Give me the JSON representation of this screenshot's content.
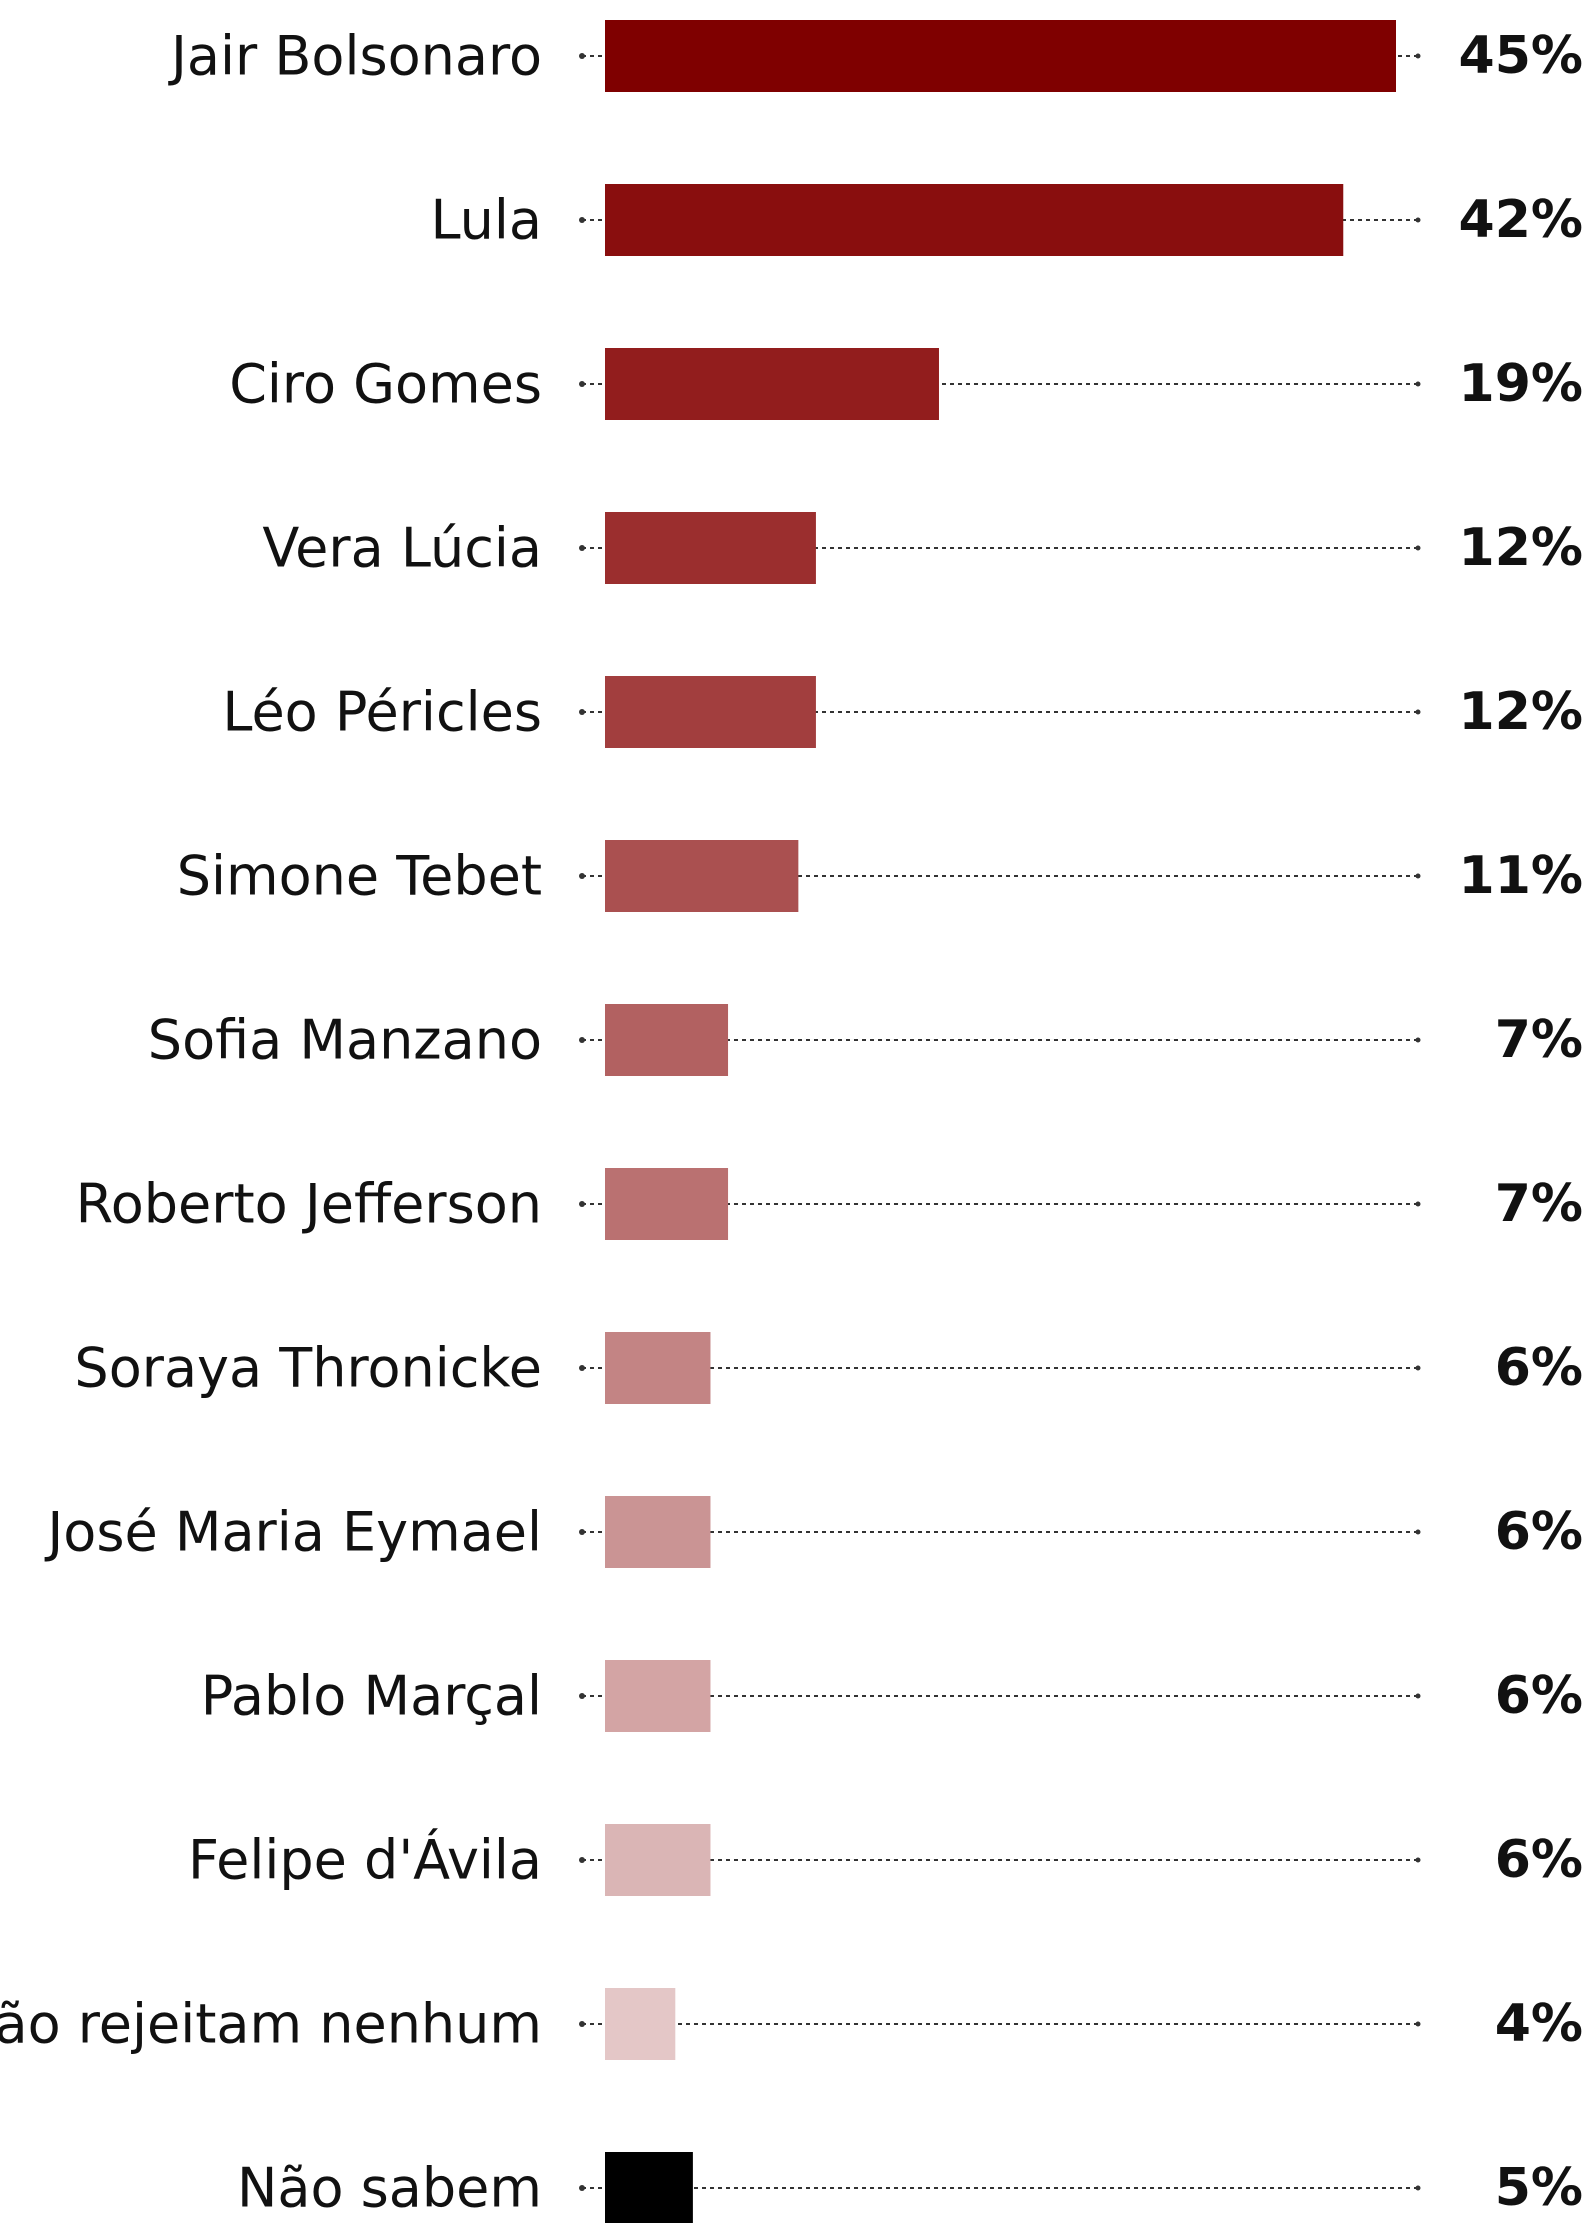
{
  "chart_data": {
    "type": "bar",
    "orientation": "horizontal",
    "categories": [
      "Jair Bolsonaro",
      "Lula",
      "Ciro Gomes",
      "Vera Lúcia",
      "Léo Péricles",
      "Simone Tebet",
      "Sofia Manzano",
      "Roberto Jefferson",
      "Soraya Thronicke",
      "José Maria Eymael",
      "Pablo Marçal",
      "Felipe d'Ávila",
      "Não rejeitam nenhum",
      "Não sabem"
    ],
    "values": [
      45,
      42,
      19,
      12,
      12,
      11,
      7,
      7,
      6,
      6,
      6,
      6,
      4,
      5
    ],
    "value_labels": [
      "45%",
      "42%",
      "19%",
      "12%",
      "12%",
      "11%",
      "7%",
      "7%",
      "6%",
      "6%",
      "6%",
      "6%",
      "4%",
      "5%"
    ],
    "colors": [
      "#7F0000",
      "#890E0E",
      "#921D1D",
      "#9B2E2E",
      "#A23E3E",
      "#AA5050",
      "#B26161",
      "#BA7171",
      "#C38484",
      "#CA9494",
      "#D3A4A4",
      "#DAB5B5",
      "#E4C7C7",
      "#000000"
    ],
    "xlim": [
      0,
      45
    ],
    "grid": false,
    "legend": "none"
  }
}
